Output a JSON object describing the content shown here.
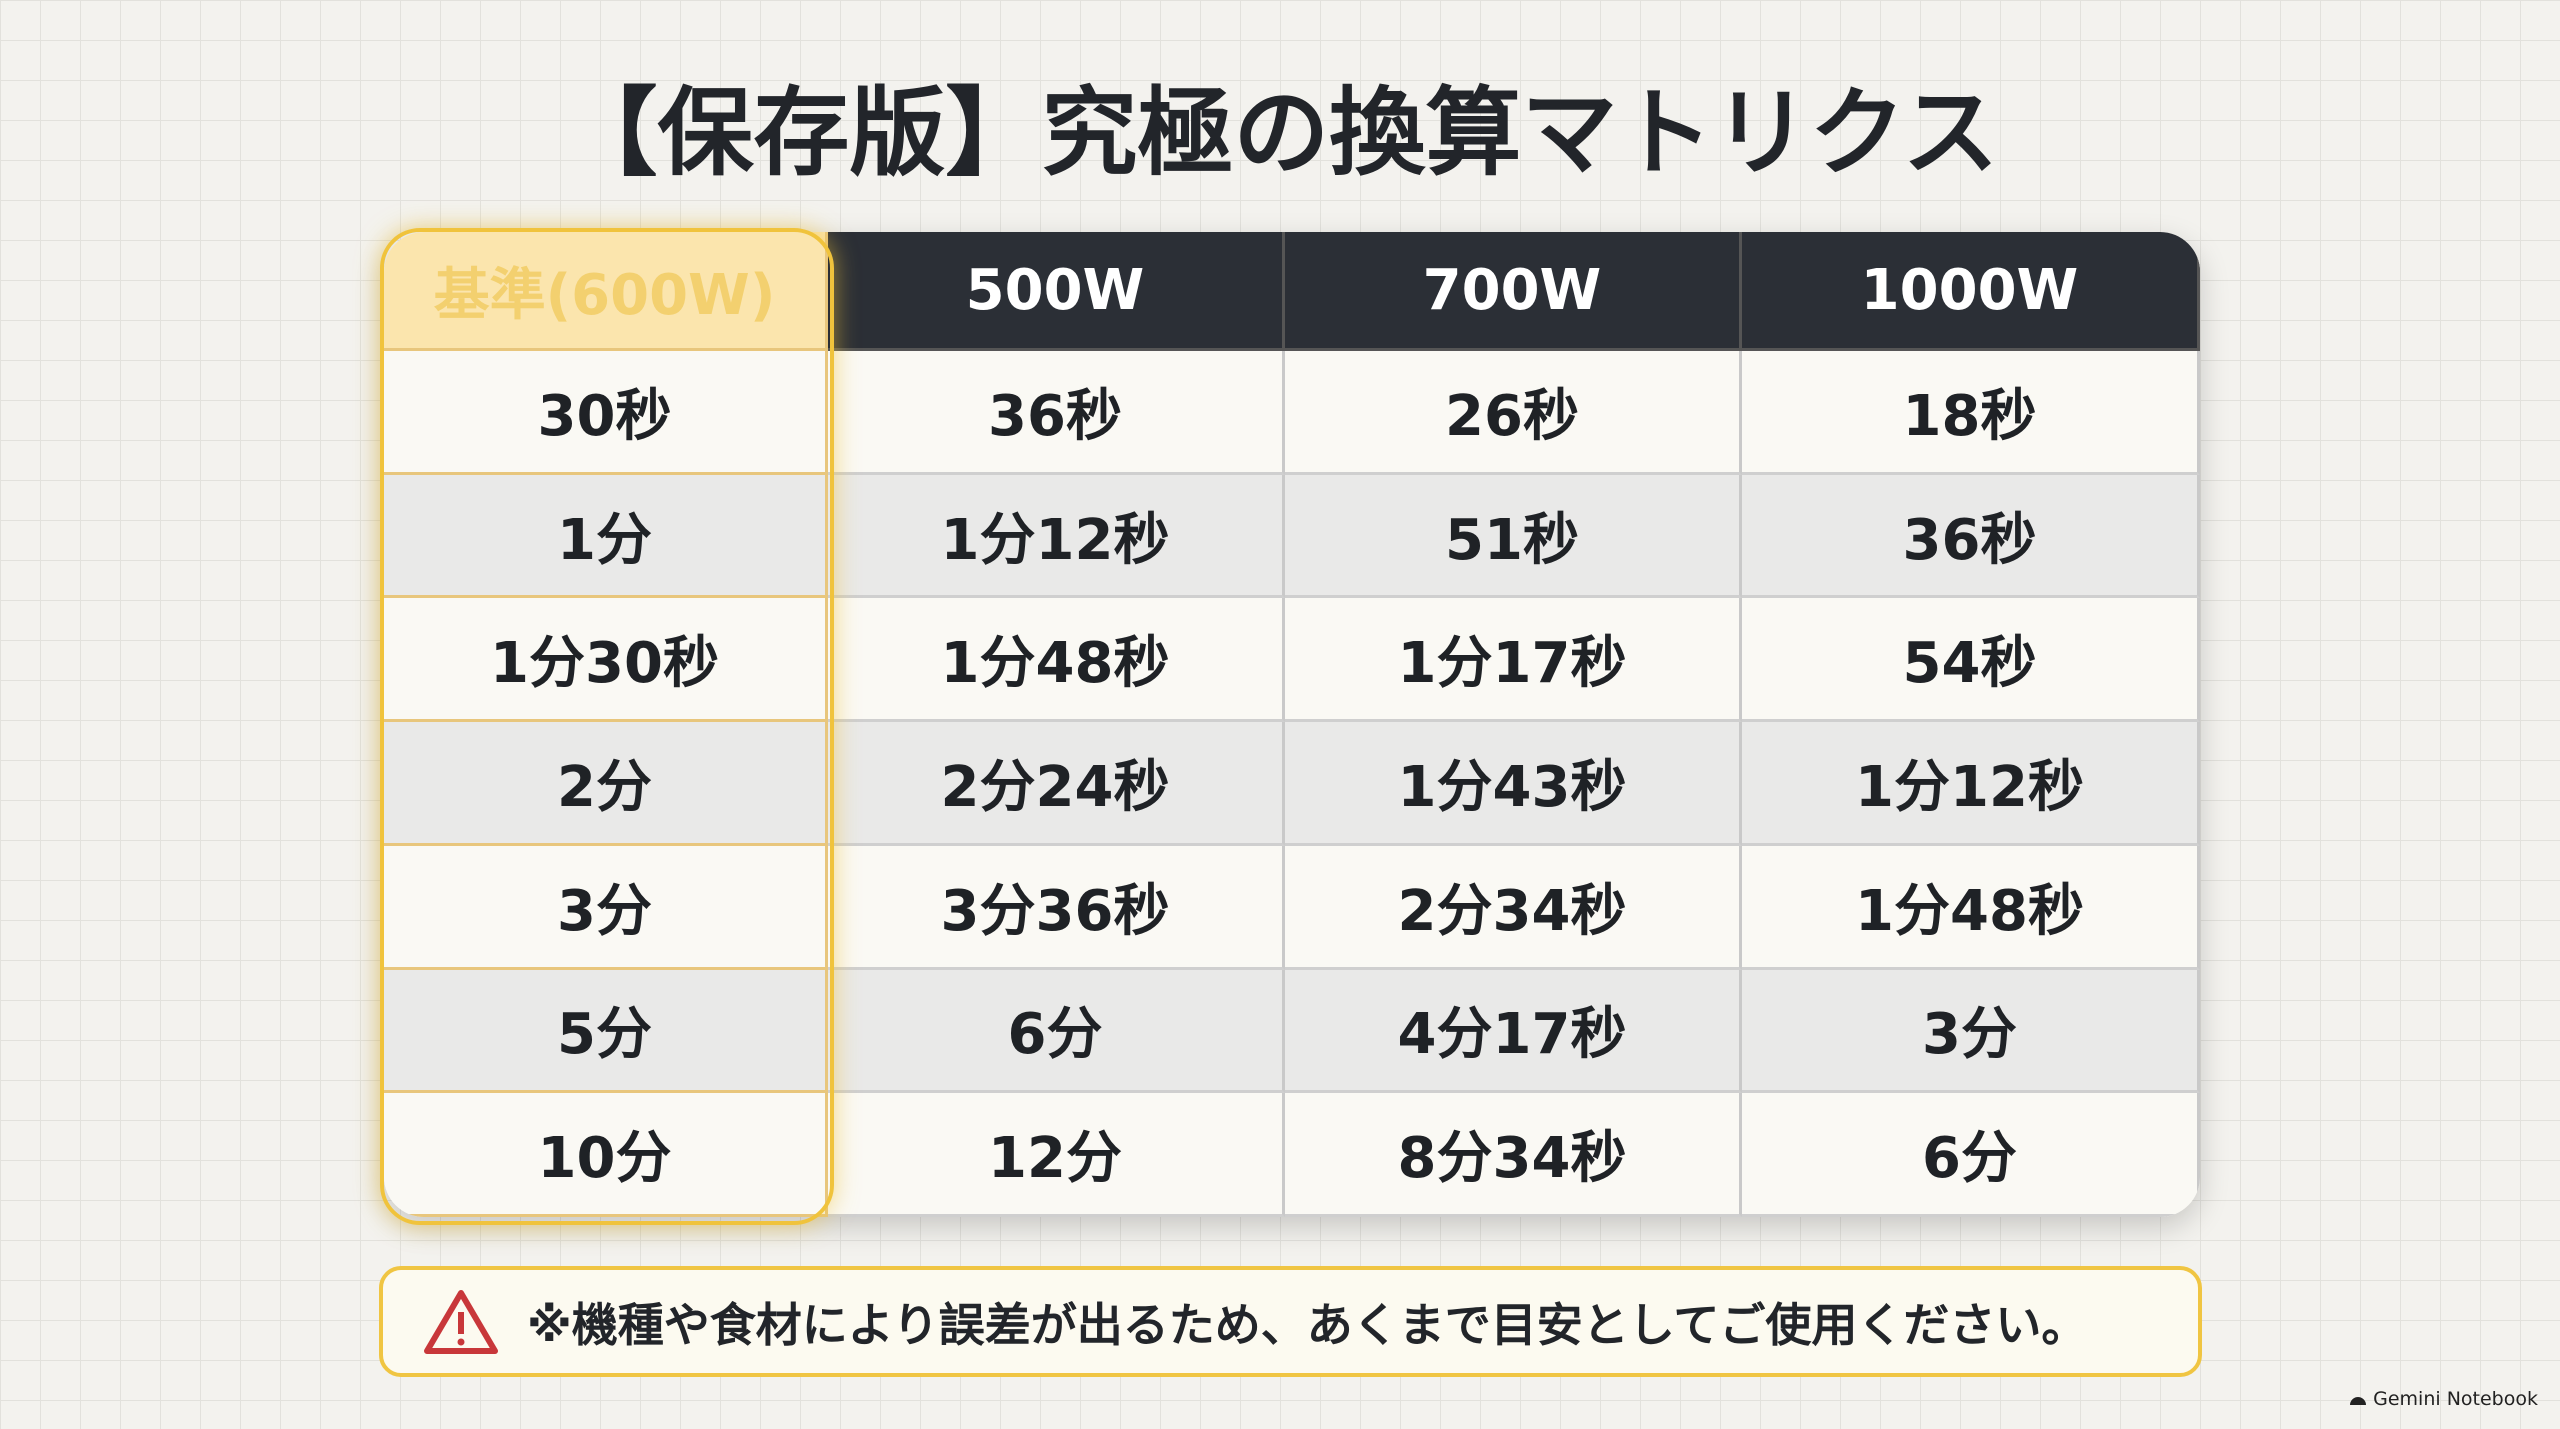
{
  "header": {
    "title": "【保存版】究極の換算マトリクス"
  },
  "table": {
    "columns": [
      "基準(600W)",
      "500W",
      "700W",
      "1000W"
    ],
    "rows": [
      [
        "30秒",
        "36秒",
        "26秒",
        "18秒"
      ],
      [
        "1分",
        "1分12秒",
        "51秒",
        "36秒"
      ],
      [
        "1分30秒",
        "1分48秒",
        "1分17秒",
        "54秒"
      ],
      [
        "2分",
        "2分24秒",
        "1分43秒",
        "1分12秒"
      ],
      [
        "3分",
        "3分36秒",
        "2分34秒",
        "1分48秒"
      ],
      [
        "5分",
        "6分",
        "4分17秒",
        "3分"
      ],
      [
        "10分",
        "12分",
        "8分34秒",
        "6分"
      ]
    ]
  },
  "note": "※機種や食材により誤差が出るため、あくまで目安としてご使用ください。",
  "footer": "Gemini Notebook"
}
